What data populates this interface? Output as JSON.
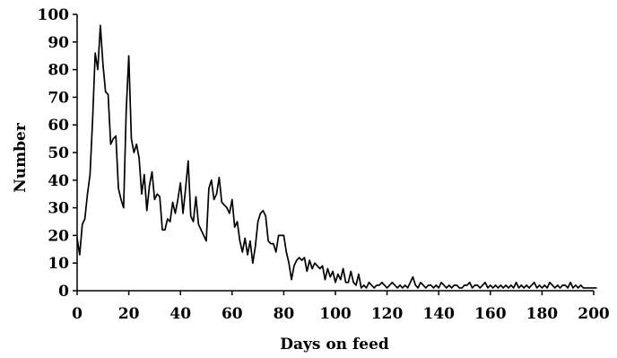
{
  "chart_data": {
    "type": "line",
    "title": "",
    "xlabel": "Days on feed",
    "ylabel": "Number",
    "xlim": [
      0,
      200
    ],
    "ylim": [
      0,
      100
    ],
    "xticks": [
      0,
      20,
      40,
      60,
      80,
      100,
      120,
      140,
      160,
      180,
      200
    ],
    "yticks": [
      0,
      10,
      20,
      30,
      40,
      50,
      60,
      70,
      80,
      90,
      100
    ],
    "grid": false,
    "series": [
      {
        "color": "#000000",
        "x": [
          0,
          1,
          2,
          3,
          4,
          5,
          6,
          7,
          8,
          9,
          10,
          11,
          12,
          13,
          14,
          15,
          16,
          17,
          18,
          19,
          20,
          21,
          22,
          23,
          24,
          25,
          26,
          27,
          28,
          29,
          30,
          31,
          32,
          33,
          34,
          35,
          36,
          37,
          38,
          39,
          40,
          41,
          42,
          43,
          44,
          45,
          46,
          47,
          48,
          49,
          50,
          51,
          52,
          53,
          54,
          55,
          56,
          57,
          58,
          59,
          60,
          61,
          62,
          63,
          64,
          65,
          66,
          67,
          68,
          69,
          70,
          71,
          72,
          73,
          74,
          75,
          76,
          77,
          78,
          79,
          80,
          81,
          82,
          83,
          84,
          85,
          86,
          87,
          88,
          89,
          90,
          91,
          92,
          93,
          94,
          95,
          96,
          97,
          98,
          99,
          100,
          101,
          102,
          103,
          104,
          105,
          106,
          107,
          108,
          109,
          110,
          111,
          112,
          113,
          114,
          115,
          116,
          117,
          118,
          119,
          120,
          121,
          122,
          123,
          124,
          125,
          126,
          127,
          128,
          129,
          130,
          131,
          132,
          133,
          134,
          135,
          136,
          137,
          138,
          139,
          140,
          141,
          142,
          143,
          144,
          145,
          146,
          147,
          148,
          149,
          150,
          151,
          152,
          153,
          154,
          155,
          156,
          157,
          158,
          159,
          160,
          161,
          162,
          163,
          164,
          165,
          166,
          167,
          168,
          169,
          170,
          171,
          172,
          173,
          174,
          175,
          176,
          177,
          178,
          179,
          180,
          181,
          182,
          183,
          184,
          185,
          186,
          187,
          188,
          189,
          190,
          191,
          192,
          193,
          194,
          195,
          196,
          197,
          198,
          199,
          200,
          201
        ],
        "y": [
          19,
          13,
          24,
          26,
          35,
          42,
          62,
          86,
          80,
          96,
          82,
          72,
          71,
          53,
          55,
          56,
          37,
          33,
          30,
          65,
          85,
          55,
          50,
          53,
          48,
          35,
          42,
          29,
          38,
          43,
          33,
          35,
          34,
          22,
          22,
          26,
          25,
          32,
          28,
          33,
          39,
          28,
          37,
          47,
          27,
          25,
          34,
          24,
          22,
          20,
          18,
          37,
          40,
          33,
          35,
          41,
          32,
          31,
          30,
          28,
          33,
          23,
          25,
          18,
          14,
          19,
          13,
          18,
          10,
          16,
          25,
          28,
          29,
          27,
          18,
          17,
          17,
          14,
          20,
          20,
          20,
          14,
          10,
          4,
          9,
          11,
          12,
          11,
          12,
          7,
          11,
          8,
          10,
          9,
          8,
          9,
          4,
          8,
          5,
          7,
          3,
          6,
          4,
          8,
          3,
          3,
          7,
          3,
          2,
          6,
          1,
          2,
          1,
          3,
          2,
          1,
          2,
          2,
          3,
          2,
          1,
          2,
          3,
          2,
          1,
          2,
          1,
          2,
          1,
          3,
          5,
          2,
          1,
          3,
          2,
          1,
          2,
          2,
          1,
          2,
          1,
          3,
          2,
          1,
          2,
          1,
          2,
          2,
          1,
          1,
          2,
          2,
          3,
          1,
          2,
          2,
          1,
          2,
          3,
          1,
          2,
          1,
          2,
          1,
          2,
          1,
          2,
          1,
          2,
          1,
          3,
          1,
          2,
          1,
          2,
          1,
          2,
          3,
          1,
          2,
          1,
          2,
          1,
          3,
          2,
          1,
          2,
          1,
          2,
          2,
          1,
          3,
          1,
          2,
          1,
          2,
          1,
          1,
          1,
          1,
          1,
          1
        ]
      }
    ]
  }
}
